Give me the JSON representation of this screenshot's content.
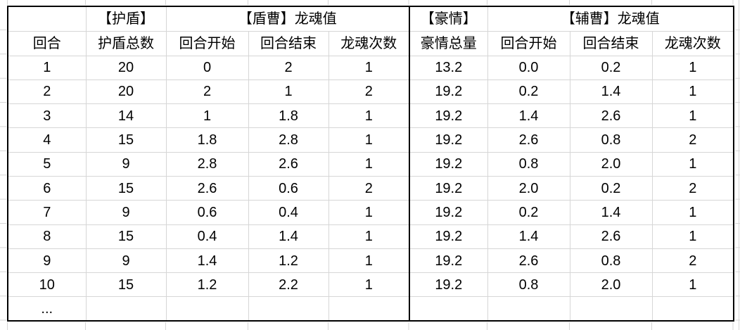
{
  "table": {
    "group_headers": [
      {
        "label": "",
        "span": 1
      },
      {
        "label": "【护盾】",
        "span": 1
      },
      {
        "label": "【盾曹】龙魂值",
        "span": 3
      },
      {
        "label": "【豪情】",
        "span": 1
      },
      {
        "label": "【辅曹】龙魂值",
        "span": 3
      }
    ],
    "column_headers": [
      "回合",
      "护盾总数",
      "回合开始",
      "回合结束",
      "龙魂次数",
      "豪情总量",
      "回合开始",
      "回合结束",
      "龙魂次数"
    ],
    "rows": [
      [
        "1",
        "20",
        "0",
        "2",
        "1",
        "13.2",
        "0.0",
        "0.2",
        "1"
      ],
      [
        "2",
        "20",
        "2",
        "1",
        "2",
        "19.2",
        "0.2",
        "1.4",
        "1"
      ],
      [
        "3",
        "14",
        "1",
        "1.8",
        "1",
        "19.2",
        "1.4",
        "2.6",
        "1"
      ],
      [
        "4",
        "15",
        "1.8",
        "2.8",
        "1",
        "19.2",
        "2.6",
        "0.8",
        "2"
      ],
      [
        "5",
        "9",
        "2.8",
        "2.6",
        "1",
        "19.2",
        "0.8",
        "2.0",
        "1"
      ],
      [
        "6",
        "15",
        "2.6",
        "0.6",
        "2",
        "19.2",
        "2.0",
        "0.2",
        "2"
      ],
      [
        "7",
        "9",
        "0.6",
        "0.4",
        "1",
        "19.2",
        "0.2",
        "1.4",
        "1"
      ],
      [
        "8",
        "15",
        "0.4",
        "1.4",
        "1",
        "19.2",
        "1.4",
        "2.6",
        "1"
      ],
      [
        "9",
        "9",
        "1.4",
        "1.2",
        "1",
        "19.2",
        "2.6",
        "0.8",
        "2"
      ],
      [
        "10",
        "15",
        "1.2",
        "2.2",
        "1",
        "19.2",
        "0.8",
        "2.0",
        "1"
      ]
    ],
    "ellipsis_row": [
      "...",
      "",
      "",
      "",
      "",
      "",
      "",
      "",
      ""
    ]
  },
  "colors": {
    "background": "#ffffff",
    "text": "#000000",
    "table_border": "#000000",
    "grid_line": "#d6d6d6"
  }
}
